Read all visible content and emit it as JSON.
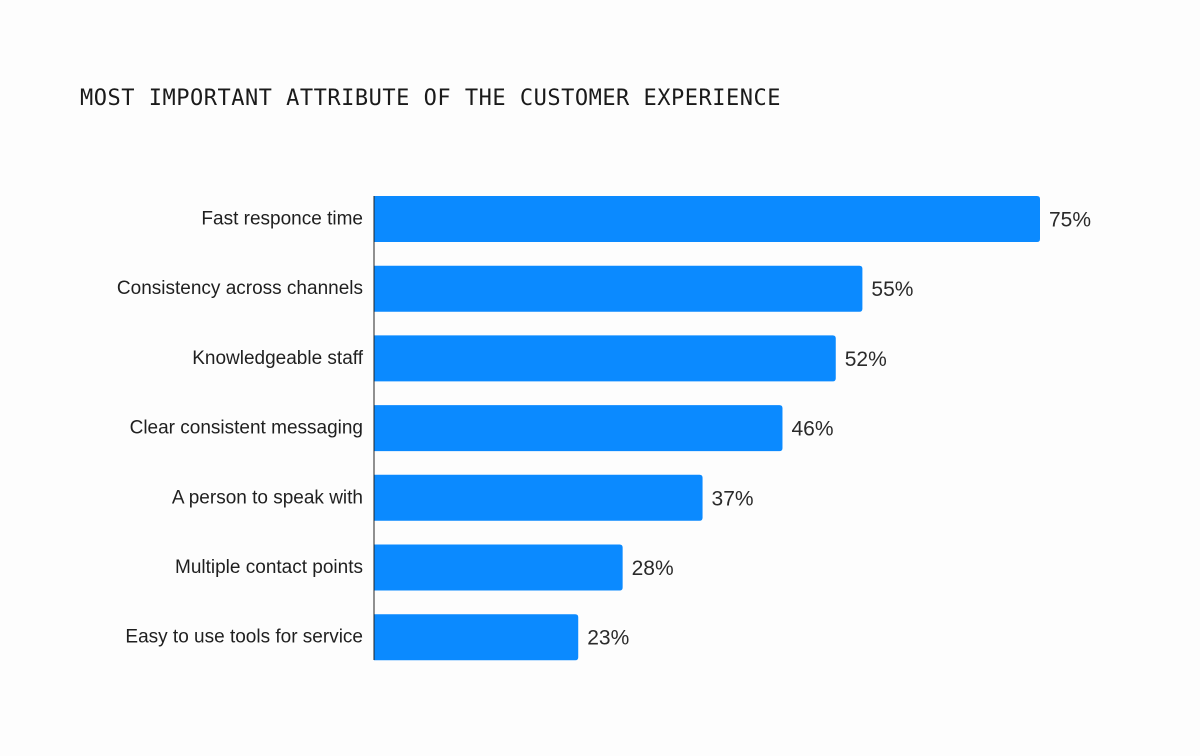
{
  "colors": {
    "bar": "#0b8aff",
    "axis": "#222222",
    "background": "#fdfdfd"
  },
  "chart_data": {
    "type": "bar",
    "orientation": "horizontal",
    "title": "MOST IMPORTANT ATTRIBUTE OF THE CUSTOMER EXPERIENCE",
    "categories": [
      "Fast responce time",
      "Consistency across channels",
      "Knowledgeable staff",
      "Clear consistent messaging",
      "A person to speak with",
      "Multiple contact points",
      "Easy to use tools for service"
    ],
    "values": [
      75,
      55,
      52,
      46,
      37,
      28,
      23
    ],
    "value_labels": [
      "75%",
      "55%",
      "52%",
      "46%",
      "37%",
      "28%",
      "23%"
    ],
    "unit": "%",
    "xlim": [
      0,
      100
    ],
    "grid": false,
    "legend": "none"
  }
}
